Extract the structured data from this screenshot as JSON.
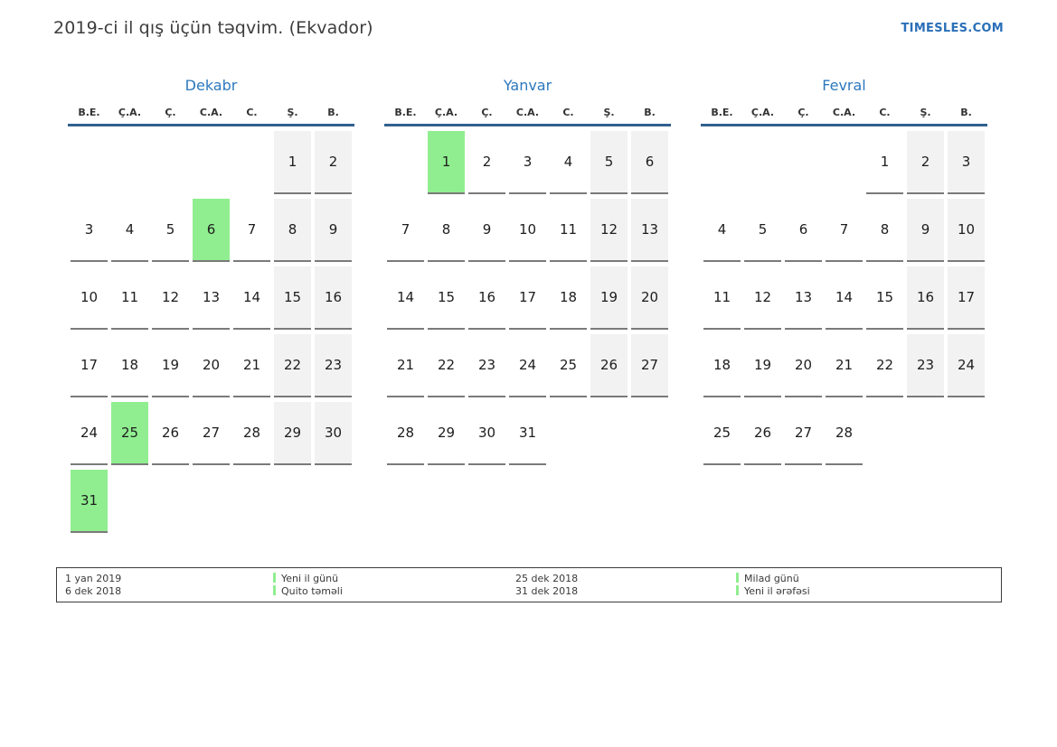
{
  "page": {
    "title": "2019-ci il qış üçün təqvim. (Ekvador)",
    "site_link": "TIMESLES.COM"
  },
  "colors": {
    "link_blue": "#2a6fb8",
    "month_title_blue": "#2d78bd",
    "header_rule_blue": "#31608f",
    "holiday_green": "#90ee90",
    "weekend_gray": "#f2f2f2"
  },
  "weekday_headers": [
    "B.E.",
    "Ç.A.",
    "Ç.",
    "C.A.",
    "C.",
    "Ş.",
    "B."
  ],
  "months": [
    {
      "name": "Dekabr",
      "weeks": [
        [
          {
            "d": "",
            "t": "e"
          },
          {
            "d": "",
            "t": "e"
          },
          {
            "d": "",
            "t": "e"
          },
          {
            "d": "",
            "t": "e"
          },
          {
            "d": "",
            "t": "e"
          },
          {
            "d": "1",
            "t": "w"
          },
          {
            "d": "2",
            "t": "w"
          }
        ],
        [
          {
            "d": "3",
            "t": "d"
          },
          {
            "d": "4",
            "t": "d"
          },
          {
            "d": "5",
            "t": "d"
          },
          {
            "d": "6",
            "t": "h"
          },
          {
            "d": "7",
            "t": "d"
          },
          {
            "d": "8",
            "t": "w"
          },
          {
            "d": "9",
            "t": "w"
          }
        ],
        [
          {
            "d": "10",
            "t": "d"
          },
          {
            "d": "11",
            "t": "d"
          },
          {
            "d": "12",
            "t": "d"
          },
          {
            "d": "13",
            "t": "d"
          },
          {
            "d": "14",
            "t": "d"
          },
          {
            "d": "15",
            "t": "w"
          },
          {
            "d": "16",
            "t": "w"
          }
        ],
        [
          {
            "d": "17",
            "t": "d"
          },
          {
            "d": "18",
            "t": "d"
          },
          {
            "d": "19",
            "t": "d"
          },
          {
            "d": "20",
            "t": "d"
          },
          {
            "d": "21",
            "t": "d"
          },
          {
            "d": "22",
            "t": "w"
          },
          {
            "d": "23",
            "t": "w"
          }
        ],
        [
          {
            "d": "24",
            "t": "d"
          },
          {
            "d": "25",
            "t": "h"
          },
          {
            "d": "26",
            "t": "d"
          },
          {
            "d": "27",
            "t": "d"
          },
          {
            "d": "28",
            "t": "d"
          },
          {
            "d": "29",
            "t": "w"
          },
          {
            "d": "30",
            "t": "w"
          }
        ],
        [
          {
            "d": "31",
            "t": "h"
          },
          {
            "d": "",
            "t": "e"
          },
          {
            "d": "",
            "t": "e"
          },
          {
            "d": "",
            "t": "e"
          },
          {
            "d": "",
            "t": "e"
          },
          {
            "d": "",
            "t": "e"
          },
          {
            "d": "",
            "t": "e"
          }
        ]
      ]
    },
    {
      "name": "Yanvar",
      "weeks": [
        [
          {
            "d": "",
            "t": "e"
          },
          {
            "d": "1",
            "t": "h"
          },
          {
            "d": "2",
            "t": "d"
          },
          {
            "d": "3",
            "t": "d"
          },
          {
            "d": "4",
            "t": "d"
          },
          {
            "d": "5",
            "t": "w"
          },
          {
            "d": "6",
            "t": "w"
          }
        ],
        [
          {
            "d": "7",
            "t": "d"
          },
          {
            "d": "8",
            "t": "d"
          },
          {
            "d": "9",
            "t": "d"
          },
          {
            "d": "10",
            "t": "d"
          },
          {
            "d": "11",
            "t": "d"
          },
          {
            "d": "12",
            "t": "w"
          },
          {
            "d": "13",
            "t": "w"
          }
        ],
        [
          {
            "d": "14",
            "t": "d"
          },
          {
            "d": "15",
            "t": "d"
          },
          {
            "d": "16",
            "t": "d"
          },
          {
            "d": "17",
            "t": "d"
          },
          {
            "d": "18",
            "t": "d"
          },
          {
            "d": "19",
            "t": "w"
          },
          {
            "d": "20",
            "t": "w"
          }
        ],
        [
          {
            "d": "21",
            "t": "d"
          },
          {
            "d": "22",
            "t": "d"
          },
          {
            "d": "23",
            "t": "d"
          },
          {
            "d": "24",
            "t": "d"
          },
          {
            "d": "25",
            "t": "d"
          },
          {
            "d": "26",
            "t": "w"
          },
          {
            "d": "27",
            "t": "w"
          }
        ],
        [
          {
            "d": "28",
            "t": "d"
          },
          {
            "d": "29",
            "t": "d"
          },
          {
            "d": "30",
            "t": "d"
          },
          {
            "d": "31",
            "t": "d"
          },
          {
            "d": "",
            "t": "e"
          },
          {
            "d": "",
            "t": "e"
          },
          {
            "d": "",
            "t": "e"
          }
        ]
      ]
    },
    {
      "name": "Fevral",
      "weeks": [
        [
          {
            "d": "",
            "t": "e"
          },
          {
            "d": "",
            "t": "e"
          },
          {
            "d": "",
            "t": "e"
          },
          {
            "d": "",
            "t": "e"
          },
          {
            "d": "1",
            "t": "d"
          },
          {
            "d": "2",
            "t": "w"
          },
          {
            "d": "3",
            "t": "w"
          }
        ],
        [
          {
            "d": "4",
            "t": "d"
          },
          {
            "d": "5",
            "t": "d"
          },
          {
            "d": "6",
            "t": "d"
          },
          {
            "d": "7",
            "t": "d"
          },
          {
            "d": "8",
            "t": "d"
          },
          {
            "d": "9",
            "t": "w"
          },
          {
            "d": "10",
            "t": "w"
          }
        ],
        [
          {
            "d": "11",
            "t": "d"
          },
          {
            "d": "12",
            "t": "d"
          },
          {
            "d": "13",
            "t": "d"
          },
          {
            "d": "14",
            "t": "d"
          },
          {
            "d": "15",
            "t": "d"
          },
          {
            "d": "16",
            "t": "w"
          },
          {
            "d": "17",
            "t": "w"
          }
        ],
        [
          {
            "d": "18",
            "t": "d"
          },
          {
            "d": "19",
            "t": "d"
          },
          {
            "d": "20",
            "t": "d"
          },
          {
            "d": "21",
            "t": "d"
          },
          {
            "d": "22",
            "t": "d"
          },
          {
            "d": "23",
            "t": "w"
          },
          {
            "d": "24",
            "t": "w"
          }
        ],
        [
          {
            "d": "25",
            "t": "d"
          },
          {
            "d": "26",
            "t": "d"
          },
          {
            "d": "27",
            "t": "d"
          },
          {
            "d": "28",
            "t": "d"
          },
          {
            "d": "",
            "t": "e"
          },
          {
            "d": "",
            "t": "e"
          },
          {
            "d": "",
            "t": "e"
          }
        ]
      ]
    }
  ],
  "legend": {
    "groups": [
      {
        "entries": [
          {
            "date": "1 yan 2019",
            "label": "Yeni il günü"
          },
          {
            "date": "6 dek 2018",
            "label": "Quito təməli"
          }
        ]
      },
      {
        "entries": [
          {
            "date": "25 dek 2018",
            "label": "Milad günü"
          },
          {
            "date": "31 dek 2018",
            "label": "Yeni il ərəfəsi"
          }
        ]
      }
    ]
  }
}
